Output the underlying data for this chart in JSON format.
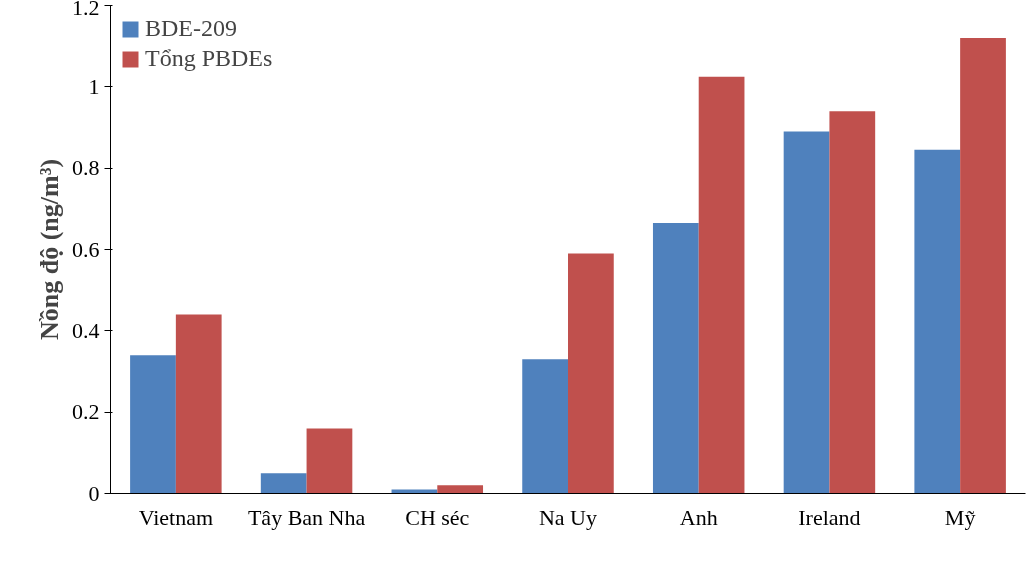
{
  "chart_data": {
    "type": "bar",
    "ylabel": "Nồng độ (ng/m³)",
    "categories": [
      "Vietnam",
      "Tây Ban Nha",
      "CH séc",
      "Na Uy",
      "Anh",
      "Ireland",
      "Mỹ"
    ],
    "series": [
      {
        "name": "BDE-209",
        "color": "#4f81bd",
        "values": [
          0.34,
          0.05,
          0.01,
          0.33,
          0.665,
          0.89,
          0.845
        ]
      },
      {
        "name": "Tổng PBDEs",
        "color": "#c0504d",
        "values": [
          0.44,
          0.16,
          0.02,
          0.59,
          1.025,
          0.94,
          1.12
        ]
      }
    ],
    "ylim": [
      0,
      1.2
    ],
    "yticks": [
      0,
      0.2,
      0.4,
      0.6,
      0.8,
      1,
      1.2
    ],
    "grid": false,
    "legend": "top left"
  }
}
